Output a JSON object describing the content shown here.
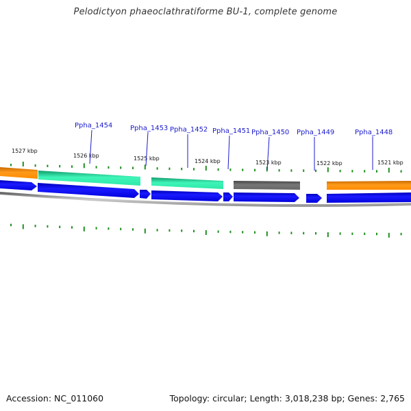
{
  "title": "Pelodictyon phaeoclathratiforme BU-1, complete genome",
  "footer": {
    "accession": "Accession: NC_011060",
    "topology": "Topology: circular; Length: 3,018,238 bp; Genes: 2,765"
  },
  "genes": [
    {
      "name": "Ppha_1454"
    },
    {
      "name": "Ppha_1453"
    },
    {
      "name": "Ppha_1452"
    },
    {
      "name": "Ppha_1451"
    },
    {
      "name": "Ppha_1450"
    },
    {
      "name": "Ppha_1449"
    },
    {
      "name": "Ppha_1448"
    }
  ],
  "kbp_labels": [
    "1527 kbp",
    "1526 kbp",
    "1525 kbp",
    "1524 kbp",
    "1523 kbp",
    "1522 kbp",
    "1521 kbp"
  ],
  "colors": {
    "cog_orange": "#ff8c00",
    "cog_teal": "#2ee8a8",
    "cog_gray": "#666666",
    "cds_blue": "#0000ee",
    "label_blue": "#1a1acc",
    "tick_green": "#1f8f1f",
    "backbone_gray": "#888888"
  }
}
